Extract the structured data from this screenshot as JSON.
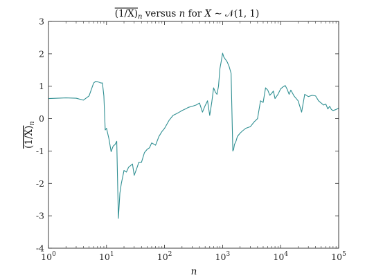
{
  "chart_data": {
    "type": "line",
    "title": {
      "overline_text": "(1/X)",
      "subscript": "n",
      "middle": " versus ",
      "n": "n",
      "for_text": " for ",
      "x_var": "X",
      "rest": " ∼ 𝒩(1, 1)"
    },
    "xlabel": "n",
    "ylabel": {
      "overline_text": "(1/X)",
      "subscript": "n"
    },
    "x_scale": "log",
    "xlim": [
      1,
      100000
    ],
    "ylim": [
      -4,
      3
    ],
    "x_ticks": [
      {
        "value": 1,
        "base": "10",
        "exp": "0"
      },
      {
        "value": 10,
        "base": "10",
        "exp": "1"
      },
      {
        "value": 100,
        "base": "10",
        "exp": "2"
      },
      {
        "value": 1000,
        "base": "10",
        "exp": "3"
      },
      {
        "value": 10000,
        "base": "10",
        "exp": "4"
      },
      {
        "value": 100000,
        "base": "10",
        "exp": "5"
      }
    ],
    "y_ticks": [
      {
        "value": 3,
        "label": "3"
      },
      {
        "value": 2,
        "label": "2"
      },
      {
        "value": 1,
        "label": "1"
      },
      {
        "value": 0,
        "label": "0"
      },
      {
        "value": -1,
        "label": "-1"
      },
      {
        "value": -2,
        "label": "-2"
      },
      {
        "value": -3,
        "label": "-3"
      },
      {
        "value": -4,
        "label": "-4"
      }
    ],
    "grid": false,
    "line_color": "#2f8f92",
    "series": [
      {
        "x": [
          1,
          2,
          3,
          4,
          5,
          6,
          6.5,
          7,
          7.5,
          8,
          8.5,
          9,
          9.5,
          10,
          11,
          12,
          13,
          14,
          15,
          16,
          17,
          18,
          19,
          20,
          22,
          24,
          26,
          28,
          30,
          33,
          36,
          40,
          45,
          50,
          55,
          60,
          70,
          80,
          90,
          100,
          120,
          140,
          160,
          180,
          200,
          230,
          260,
          300,
          350,
          400,
          450,
          500,
          550,
          600,
          650,
          700,
          750,
          800,
          850,
          900,
          950,
          1000,
          1050,
          1100,
          1200,
          1300,
          1400,
          1500,
          1550,
          1600,
          1700,
          1800,
          2000,
          2200,
          2500,
          3000,
          3500,
          4000,
          4500,
          5000,
          5500,
          6000,
          6500,
          7000,
          7500,
          8000,
          9000,
          10000,
          11000,
          12000,
          13000,
          14000,
          15000,
          17000,
          20000,
          23000,
          26000,
          30000,
          35000,
          40000,
          45000,
          50000,
          55000,
          60000,
          65000,
          70000,
          75000,
          80000,
          90000,
          100000
        ],
        "y": [
          0.62,
          0.64,
          0.63,
          0.57,
          0.7,
          1.1,
          1.15,
          1.14,
          1.12,
          1.1,
          1.1,
          0.7,
          -0.35,
          -0.3,
          -0.62,
          -1.02,
          -0.85,
          -0.8,
          -0.7,
          -3.08,
          -2.3,
          -2.0,
          -1.8,
          -1.6,
          -1.65,
          -1.5,
          -1.45,
          -1.4,
          -1.75,
          -1.55,
          -1.35,
          -1.35,
          -1.05,
          -0.95,
          -0.9,
          -0.75,
          -0.82,
          -0.55,
          -0.4,
          -0.3,
          -0.05,
          0.1,
          0.15,
          0.2,
          0.25,
          0.3,
          0.35,
          0.38,
          0.42,
          0.48,
          0.2,
          0.4,
          0.55,
          0.1,
          0.5,
          0.95,
          0.82,
          0.75,
          1.0,
          1.55,
          1.78,
          2.02,
          1.9,
          1.85,
          1.75,
          1.6,
          1.4,
          -1.0,
          -0.95,
          -0.8,
          -0.7,
          -0.55,
          -0.45,
          -0.38,
          -0.3,
          -0.25,
          -0.1,
          0.0,
          0.55,
          0.5,
          0.95,
          0.88,
          0.72,
          0.78,
          0.85,
          0.62,
          0.75,
          0.92,
          0.98,
          1.02,
          0.9,
          0.75,
          0.88,
          0.7,
          0.55,
          0.2,
          0.75,
          0.68,
          0.72,
          0.7,
          0.55,
          0.48,
          0.42,
          0.45,
          0.3,
          0.38,
          0.28,
          0.25,
          0.28,
          0.33
        ]
      }
    ]
  }
}
